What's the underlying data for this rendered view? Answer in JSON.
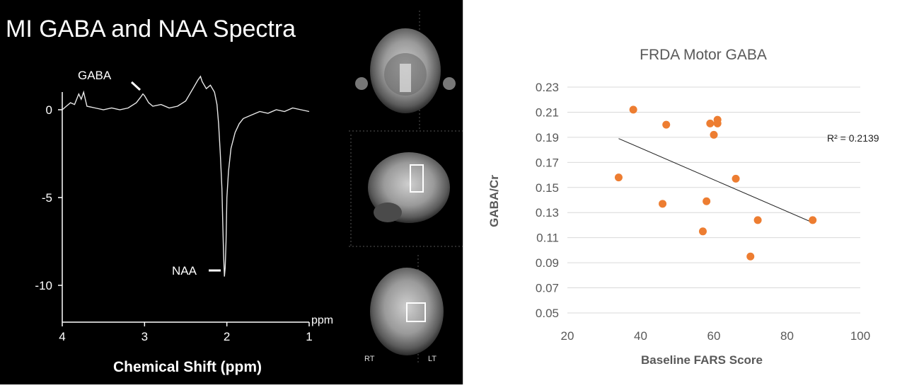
{
  "spectrum_panel": {
    "title": "MI GABA and NAA Spectra",
    "xlabel": "Chemical Shift (ppm)",
    "x_unit": "ppm",
    "x_ticks": [
      "4",
      "3",
      "2",
      "1"
    ],
    "y_ticks": [
      "0",
      "-5",
      "-10"
    ],
    "annotations": {
      "gaba": "GABA",
      "naa": "NAA"
    }
  },
  "mri_panel": {
    "views": [
      "coronal",
      "sagittal",
      "axial"
    ],
    "labels": {
      "rt": "RT",
      "lt": "LT"
    }
  },
  "chart_data": [
    {
      "type": "line",
      "title": "MI GABA and NAA Spectra",
      "xlabel": "Chemical Shift (ppm)",
      "ylabel": "",
      "xlim": [
        4,
        1
      ],
      "ylim": [
        -12,
        2.5
      ],
      "x_reversed": true,
      "series": [
        {
          "x": [
            4.0,
            3.95,
            3.9,
            3.85,
            3.8,
            3.77,
            3.74,
            3.7,
            3.6,
            3.5,
            3.4,
            3.3,
            3.2,
            3.1,
            3.05,
            3.02,
            3.0,
            2.95,
            2.9,
            2.8,
            2.7,
            2.6,
            2.5,
            2.45,
            2.4,
            2.35,
            2.32,
            2.3,
            2.25,
            2.2,
            2.15,
            2.12,
            2.1,
            2.08,
            2.06,
            2.05,
            2.04,
            2.03,
            2.02,
            2.01,
            2.0,
            1.98,
            1.95,
            1.9,
            1.85,
            1.8,
            1.7,
            1.6,
            1.5,
            1.4,
            1.3,
            1.2,
            1.1,
            1.0
          ],
          "y": [
            0.0,
            0.2,
            0.4,
            0.3,
            0.9,
            0.6,
            1.0,
            0.2,
            0.1,
            0.0,
            0.1,
            0.0,
            0.1,
            0.4,
            0.7,
            0.9,
            0.8,
            0.4,
            0.2,
            0.3,
            0.1,
            0.2,
            0.5,
            0.9,
            1.3,
            1.7,
            1.9,
            1.6,
            1.2,
            1.4,
            1.0,
            0.3,
            -0.8,
            -2.5,
            -4.5,
            -6.5,
            -8.2,
            -9.5,
            -9.0,
            -7.5,
            -5.0,
            -3.5,
            -2.2,
            -1.3,
            -0.8,
            -0.5,
            -0.3,
            -0.1,
            -0.2,
            0.0,
            -0.1,
            0.1,
            0.0,
            -0.1
          ]
        }
      ]
    },
    {
      "type": "scatter",
      "title": "FRDA Motor GABA",
      "xlabel": "Baseline FARS Score",
      "ylabel": "GABA/Cr",
      "xlim": [
        20,
        100
      ],
      "ylim": [
        0.05,
        0.23
      ],
      "x_ticks": [
        20,
        40,
        60,
        80,
        100
      ],
      "y_ticks": [
        0.05,
        0.07,
        0.09,
        0.11,
        0.13,
        0.15,
        0.17,
        0.19,
        0.21,
        0.23
      ],
      "grid": true,
      "point_color": "#ED7D31",
      "x": [
        34,
        38,
        46,
        47,
        57,
        58,
        59,
        60,
        61,
        61,
        66,
        70,
        72,
        87
      ],
      "y": [
        0.158,
        0.212,
        0.137,
        0.2,
        0.115,
        0.139,
        0.201,
        0.192,
        0.204,
        0.201,
        0.157,
        0.095,
        0.124,
        0.124
      ],
      "trendline": {
        "x": [
          34,
          87
        ],
        "y": [
          0.189,
          0.122
        ],
        "label": "R² = 0.2139"
      }
    }
  ]
}
